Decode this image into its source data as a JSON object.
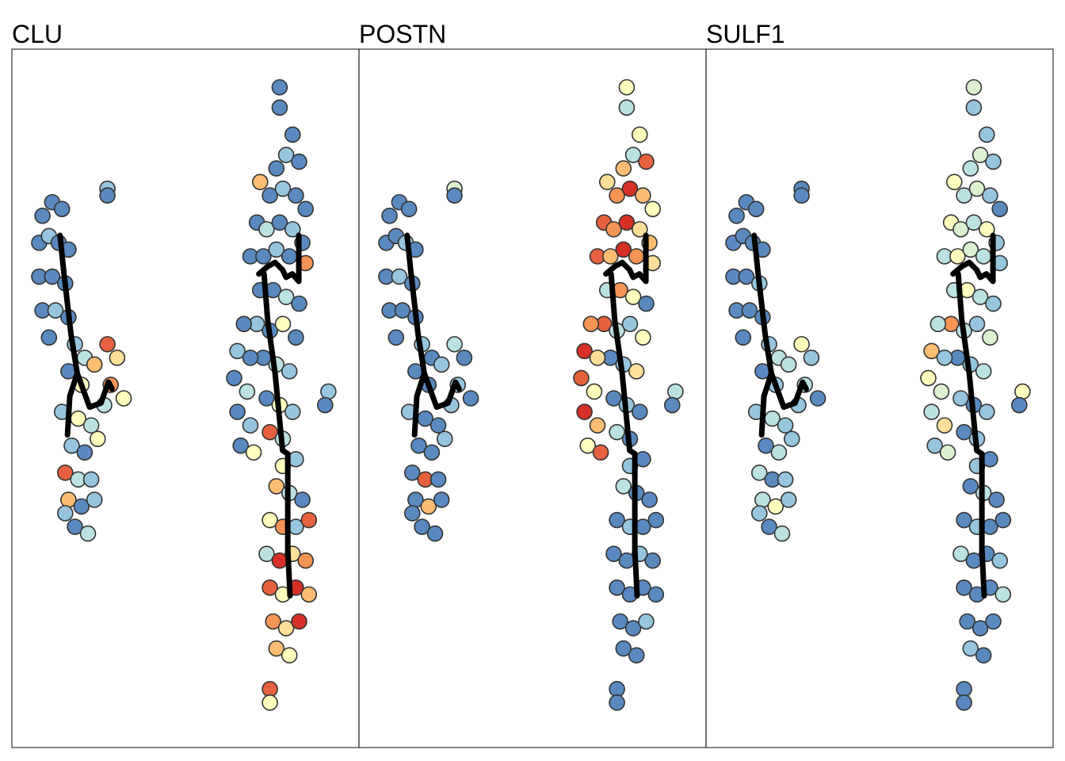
{
  "chart_data": {
    "type": "scatter",
    "xlim": [
      0,
      100
    ],
    "ylim": [
      0,
      100
    ],
    "colors": [
      "#4575b4",
      "#abd9e9",
      "#ffffbf",
      "#fdae61",
      "#d73027"
    ],
    "x": [
      6,
      9,
      12,
      5,
      8,
      11,
      14,
      5,
      9,
      13,
      6,
      10,
      14,
      8,
      16,
      19,
      14,
      18,
      22,
      26,
      29,
      27,
      31,
      25,
      12,
      17,
      21,
      15,
      19,
      23,
      13,
      17,
      21,
      14,
      18,
      22,
      16,
      20,
      13,
      26,
      26,
      79,
      79,
      83,
      81,
      78,
      85,
      73,
      76,
      80,
      84,
      87,
      72,
      75,
      79,
      83,
      86,
      70,
      74,
      78,
      82,
      87,
      73,
      77,
      81,
      85,
      72,
      76,
      80,
      84,
      74,
      78,
      82,
      75,
      79,
      83,
      76,
      80,
      68,
      66,
      70,
      65,
      69,
      66,
      70,
      67,
      71,
      94,
      93,
      80,
      84,
      78,
      82,
      86,
      76,
      80,
      84,
      88,
      75,
      79,
      83,
      87,
      76,
      80,
      84,
      88,
      77,
      81,
      85,
      78,
      82,
      76,
      76
    ],
    "y": [
      77,
      79,
      78,
      73,
      74,
      73,
      72,
      68,
      68,
      67,
      63,
      63,
      62,
      59,
      58,
      56,
      54,
      52,
      55,
      58,
      56,
      52,
      50,
      49,
      48,
      47,
      46,
      43,
      42,
      44,
      39,
      38,
      38,
      35,
      34,
      35,
      31,
      30,
      33,
      81,
      80,
      96,
      93,
      89,
      86,
      84,
      85,
      82,
      80,
      81,
      80,
      78,
      76,
      75,
      76,
      75,
      73,
      71,
      71,
      72,
      71,
      70,
      66,
      66,
      65,
      64,
      61,
      60,
      61,
      59,
      56,
      55,
      54,
      50,
      49,
      48,
      45,
      44,
      61,
      57,
      56,
      53,
      51,
      48,
      46,
      43,
      42,
      51,
      49,
      40,
      41,
      37,
      36,
      35,
      32,
      31,
      31,
      32,
      27,
      26,
      27,
      26,
      22,
      21,
      22,
      21,
      17,
      16,
      17,
      13,
      12,
      7,
      5
    ],
    "facets": [
      {
        "title": "CLU",
        "values": [
          0.05,
          0.05,
          0.05,
          0.05,
          0.2,
          0.05,
          0.05,
          0.05,
          0.05,
          0.05,
          0.05,
          0.2,
          0.05,
          0.05,
          0.2,
          0.3,
          0.05,
          0.5,
          0.7,
          0.9,
          0.6,
          0.8,
          0.5,
          0.3,
          0.2,
          0.5,
          0.3,
          0.2,
          0.05,
          0.5,
          0.9,
          0.3,
          0.2,
          0.7,
          0.05,
          0.2,
          0.05,
          0.3,
          0.2,
          0.2,
          0.05,
          0.05,
          0.05,
          0.05,
          0.2,
          0.05,
          0.05,
          0.7,
          0.05,
          0.2,
          0.05,
          0.05,
          0.05,
          0.3,
          0.05,
          0.2,
          0.05,
          0.05,
          0.05,
          0.2,
          0.05,
          0.8,
          0.05,
          0.05,
          0.3,
          0.05,
          0.2,
          0.05,
          0.5,
          0.05,
          0.05,
          0.3,
          0.2,
          0.05,
          0.5,
          0.2,
          0.9,
          0.3,
          0.05,
          0.2,
          0.05,
          0.05,
          0.3,
          0.05,
          0.2,
          0.05,
          0.5,
          0.2,
          0.05,
          0.5,
          0.2,
          0.7,
          0.3,
          0.05,
          0.5,
          0.8,
          0.2,
          0.9,
          0.3,
          1,
          0.6,
          0.8,
          0.9,
          0.5,
          1,
          0.7,
          0.8,
          0.6,
          1,
          0.7,
          0.5,
          0.9,
          0.5
        ]
      },
      {
        "title": "POSTN",
        "values": [
          0.05,
          0.05,
          0.05,
          0.05,
          0.05,
          0.2,
          0.05,
          0.05,
          0.2,
          0.05,
          0.05,
          0.05,
          0.05,
          0.05,
          0.2,
          0.05,
          0.05,
          0.05,
          0.2,
          0.3,
          0.05,
          0.2,
          0.05,
          0.2,
          0.2,
          0.05,
          0.05,
          0.05,
          0.05,
          0.2,
          0.05,
          0.9,
          0.05,
          0.05,
          0.7,
          0.05,
          0.05,
          0.05,
          0.05,
          0.4,
          0.05,
          0.5,
          0.3,
          0.5,
          0.3,
          0.7,
          0.9,
          0.6,
          0.8,
          1,
          0.7,
          0.5,
          0.9,
          0.8,
          1,
          0.6,
          0.7,
          0.9,
          0.7,
          1,
          0.8,
          0.6,
          0.3,
          0.8,
          0.5,
          0.05,
          0.9,
          0.3,
          0.2,
          0.5,
          0.05,
          0.2,
          0.6,
          0.05,
          0.2,
          0.05,
          0.3,
          0.05,
          0.8,
          1,
          0.6,
          0.9,
          0.5,
          1,
          0.7,
          0.5,
          0.9,
          0.3,
          0.05,
          0.2,
          0.05,
          0.3,
          0.05,
          0.05,
          0.05,
          0.2,
          0.05,
          0.05,
          0.05,
          0.05,
          0.2,
          0.05,
          0.05,
          0.05,
          0.05,
          0.05,
          0.05,
          0.05,
          0.2,
          0.05,
          0.05,
          0.05,
          0.05
        ]
      },
      {
        "title": "SULF1",
        "values": [
          0.05,
          0.05,
          0.05,
          0.05,
          0.05,
          0.05,
          0.05,
          0.05,
          0.05,
          0.2,
          0.05,
          0.05,
          0.05,
          0.05,
          0.2,
          0.3,
          0.05,
          0.2,
          0.3,
          0.5,
          0.2,
          0.3,
          0.05,
          0.2,
          0.2,
          0.3,
          0.2,
          0.05,
          0.3,
          0.2,
          0.3,
          0.05,
          0.2,
          0.3,
          0.5,
          0.2,
          0.05,
          0.3,
          0.2,
          0.05,
          0.05,
          0.4,
          0.2,
          0.2,
          0.4,
          0.3,
          0.2,
          0.5,
          0.3,
          0.4,
          0.2,
          0.05,
          0.5,
          0.4,
          0.3,
          0.5,
          0.2,
          0.3,
          0.5,
          0.4,
          0.3,
          0.2,
          0.3,
          0.5,
          0.3,
          0.2,
          0.8,
          0.3,
          0.2,
          0.4,
          0.05,
          0.2,
          0.3,
          0.2,
          0.05,
          0.2,
          0.05,
          0.2,
          0.3,
          0.7,
          0.2,
          0.5,
          0.4,
          0.3,
          0.6,
          0.2,
          0.4,
          0.5,
          0.05,
          0.2,
          0.05,
          0.05,
          0.3,
          0.05,
          0.05,
          0.2,
          0.05,
          0.05,
          0.3,
          0.05,
          0.05,
          0.2,
          0.05,
          0.05,
          0.05,
          0.3,
          0.05,
          0.05,
          0.05,
          0.2,
          0.05,
          0.05,
          0.05
        ]
      }
    ],
    "trajectory_color": "#000000",
    "trajectories": [
      {
        "x": [
          11.4,
          12.6,
          14.8,
          16.7,
          14.4,
          13.7
        ],
        "y": [
          74.1,
          68.5,
          59.4,
          53.7,
          50.3,
          44.6
        ]
      },
      {
        "x": [
          16.7,
          20.5,
          24,
          26.3,
          27.4
        ],
        "y": [
          53.7,
          48.7,
          49.3,
          52.4,
          51.4
        ]
      },
      {
        "x": [
          72.6,
          75.3,
          77.6,
          79.9,
          81,
          82.9,
          84.9,
          84.9
        ],
        "y": [
          68.4,
          69.5,
          70.1,
          69,
          67.9,
          68.4,
          67.3,
          74.1
        ]
      },
      {
        "x": [
          74.2,
          75.3,
          77.6,
          79.9,
          81.5,
          81.5,
          81.5,
          82.2
        ],
        "y": [
          68.4,
          61.6,
          53.7,
          42.3,
          41.8,
          34.5,
          27.7,
          20.8
        ]
      }
    ]
  }
}
